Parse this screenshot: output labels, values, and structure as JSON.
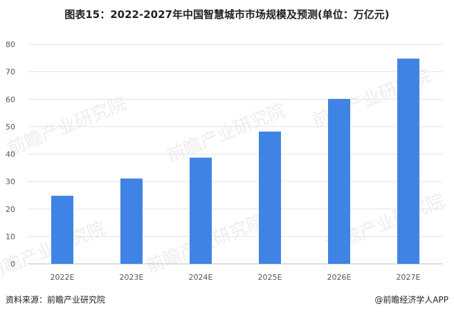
{
  "title": "图表15：2022-2027年中国智慧城市市场规模及预测(单位：万亿元)",
  "chart_data": {
    "type": "bar",
    "categories": [
      "2022E",
      "2023E",
      "2024E",
      "2025E",
      "2026E",
      "2027E"
    ],
    "values": [
      24.8,
      31.1,
      38.7,
      48.2,
      60.1,
      74.8
    ],
    "ylim": [
      0,
      80
    ],
    "yticks": [
      0,
      10,
      20,
      30,
      40,
      50,
      60,
      70,
      80
    ],
    "grid": true,
    "bar_color": "#3f83e4",
    "watermark": "前瞻产业研究院"
  },
  "footer": {
    "source": "资料来源：前瞻产业研究院",
    "brand": "@前瞻经济学人APP"
  }
}
